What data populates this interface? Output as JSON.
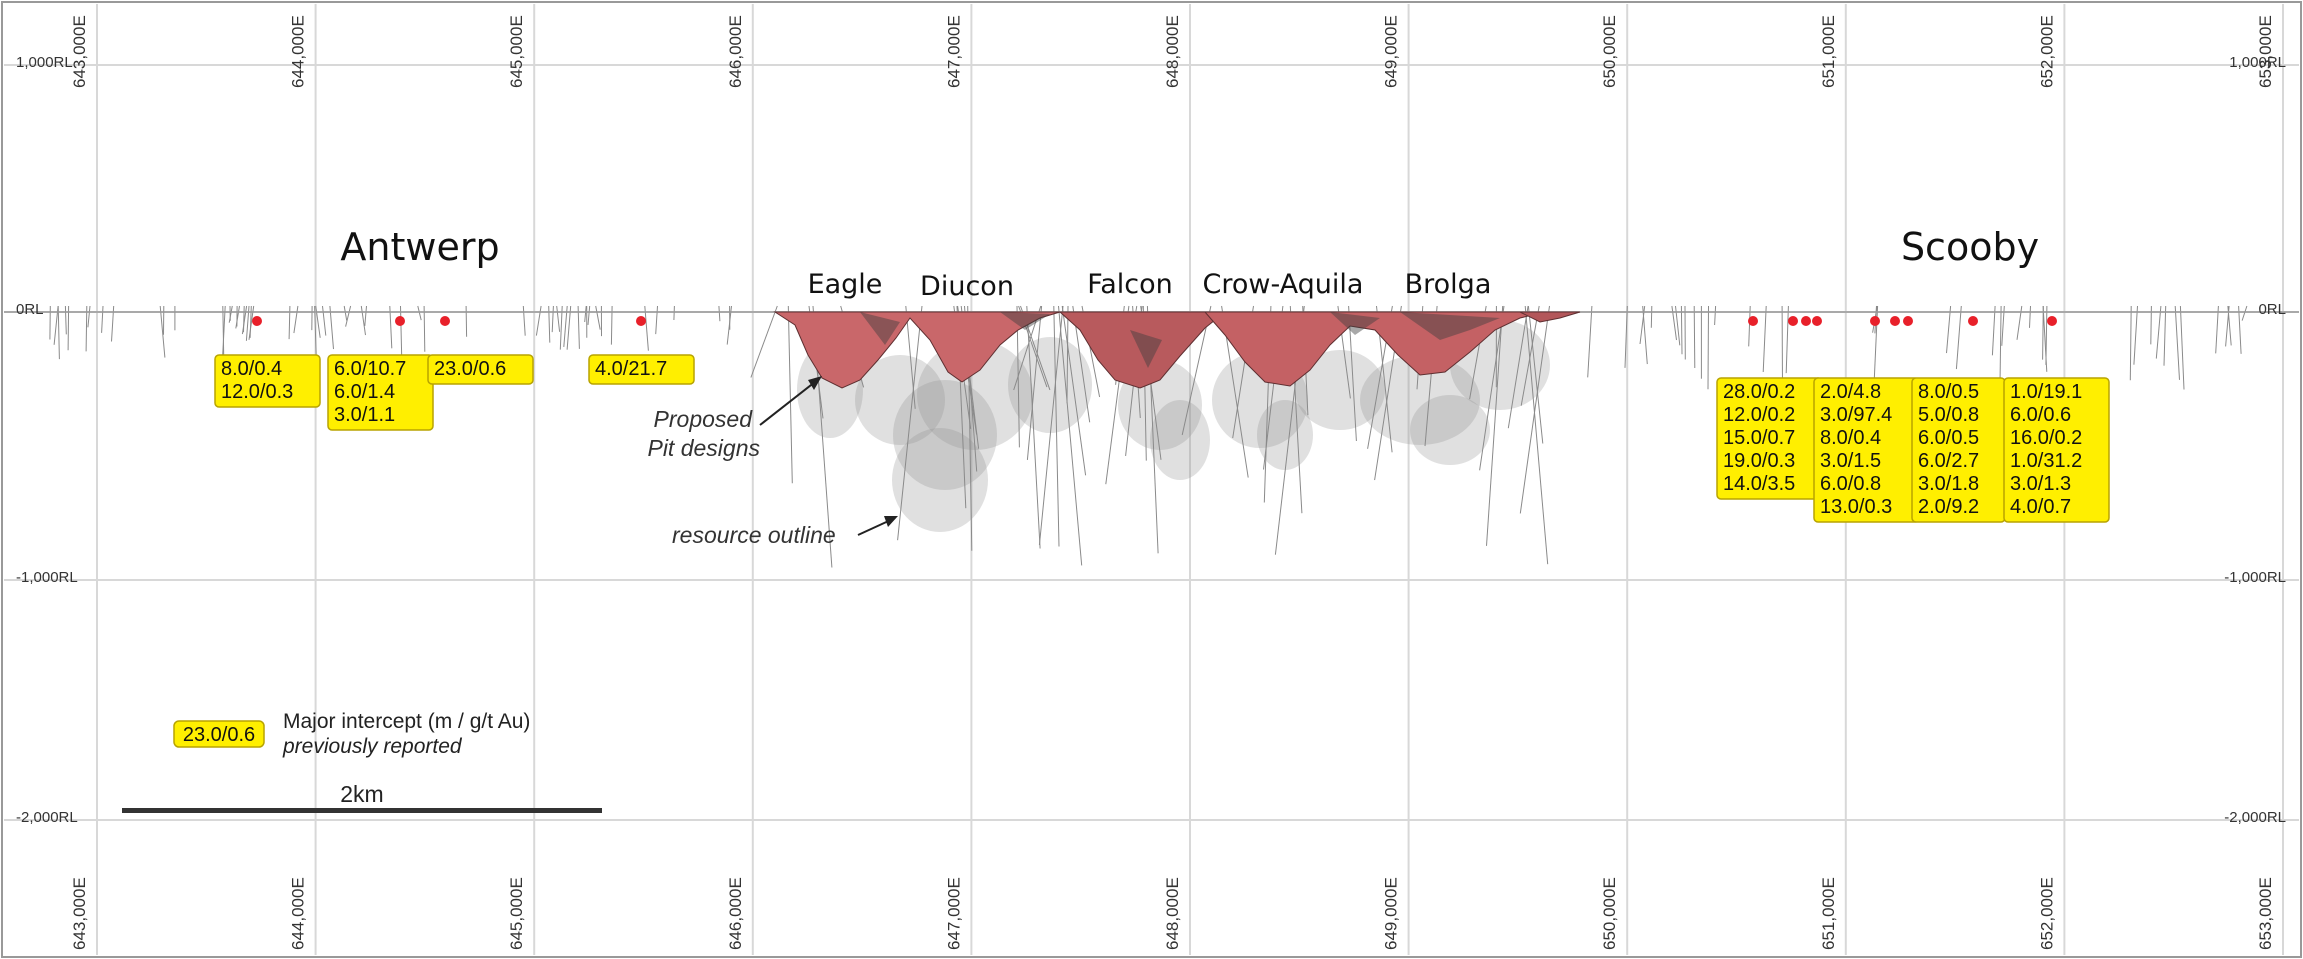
{
  "section": {
    "easting_ticks": [
      "643,000E",
      "644,000E",
      "645,000E",
      "646,000E",
      "647,000E",
      "648,000E",
      "649,000E",
      "650,000E",
      "651,000E",
      "652,000E",
      "653,000E"
    ],
    "rl_left": [
      "1,000RL",
      "0RL",
      "-1,000RL",
      "-2,000RL"
    ],
    "rl_right": [
      "1,000RL",
      "0RL",
      "-1,000RL",
      "-2,000RL"
    ],
    "deposits": [
      "Antwerp",
      "Eagle",
      "Diucon",
      "Falcon",
      "Crow-Aquila",
      "Brolga",
      "Scooby"
    ],
    "callouts": {
      "pit": [
        "Proposed",
        "Pit designs"
      ],
      "resource": "resource outline"
    },
    "intercept_boxes": [
      [
        "8.0/0.4",
        "12.0/0.3"
      ],
      [
        "6.0/10.7",
        "6.0/1.4",
        "3.0/1.1"
      ],
      [
        "23.0/0.6"
      ],
      [
        "4.0/21.7"
      ],
      [
        "28.0/0.2",
        "12.0/0.2",
        "15.0/0.7",
        "19.0/0.3",
        "14.0/3.5"
      ],
      [
        "2.0/4.8",
        "3.0/97.4",
        "8.0/0.4",
        "3.0/1.5",
        "6.0/0.8",
        "13.0/0.3"
      ],
      [
        "8.0/0.5",
        "5.0/0.8",
        "6.0/0.5",
        "6.0/2.7",
        "3.0/1.8",
        "2.0/9.2"
      ],
      [
        "1.0/19.1",
        "6.0/0.6",
        "16.0/0.2",
        "1.0/31.2",
        "3.0/1.3",
        "4.0/0.7"
      ]
    ],
    "legend": {
      "sample": "23.0/0.6",
      "label": "Major intercept (m / g/t Au)",
      "sublabel": "previously reported",
      "scale": "2km"
    },
    "colors": {
      "highlight": "#ffef00",
      "pit": "#c9676a",
      "collar": "#e8202a"
    }
  }
}
